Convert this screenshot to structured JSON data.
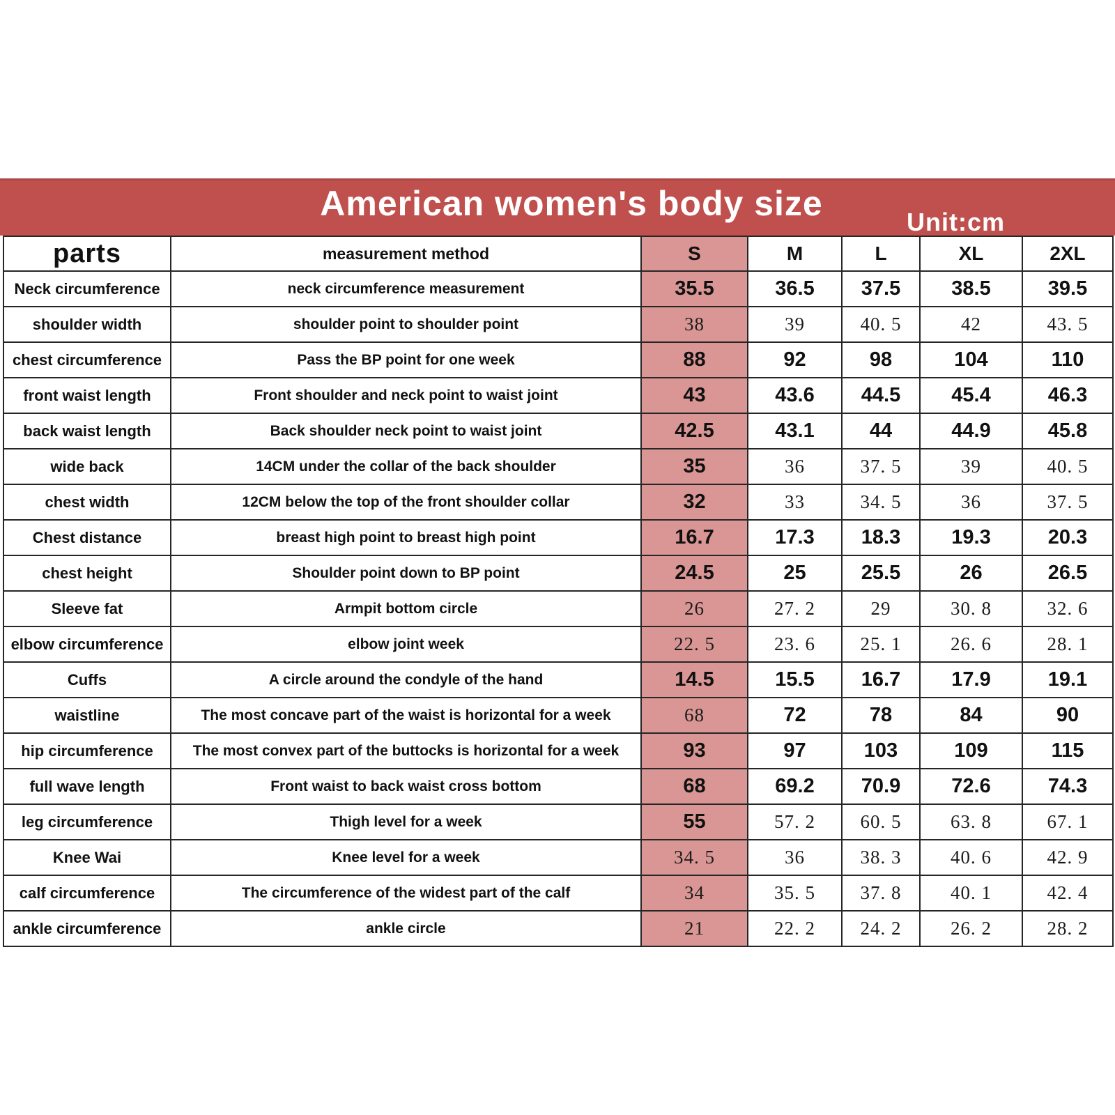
{
  "title": "American women's body size",
  "unit_label": "Unit:cm",
  "colors": {
    "banner_red": "#c0504d",
    "highlight_pink": "#d99694",
    "grid_line": "#262626",
    "title_text": "#ffffff"
  },
  "table": {
    "headers": [
      "parts",
      "measurement method",
      "S",
      "M",
      "L",
      "XL",
      "2XL"
    ],
    "highlighted_column": "S",
    "rows": [
      {
        "part": "Neck circumference",
        "method": "neck circumference measurement",
        "values": [
          "35.5",
          "36.5",
          "37.5",
          "38.5",
          "39.5"
        ],
        "styles": [
          "b",
          "b",
          "b",
          "b",
          "b"
        ]
      },
      {
        "part": "shoulder width",
        "method": "shoulder point to shoulder point",
        "values": [
          "38",
          "39",
          "40. 5",
          "42",
          "43. 5"
        ],
        "styles": [
          "s",
          "s",
          "s",
          "s",
          "s"
        ]
      },
      {
        "part": "chest circumference",
        "method": "Pass the BP point for one week",
        "values": [
          "88",
          "92",
          "98",
          "104",
          "110"
        ],
        "styles": [
          "b",
          "b",
          "b",
          "b",
          "b"
        ]
      },
      {
        "part": "front waist length",
        "method": "Front shoulder and neck point to waist joint",
        "values": [
          "43",
          "43.6",
          "44.5",
          "45.4",
          "46.3"
        ],
        "styles": [
          "b",
          "b",
          "b",
          "b",
          "b"
        ]
      },
      {
        "part": "back waist length",
        "method": "Back shoulder neck point to waist joint",
        "values": [
          "42.5",
          "43.1",
          "44",
          "44.9",
          "45.8"
        ],
        "styles": [
          "b",
          "b",
          "b",
          "b",
          "b"
        ]
      },
      {
        "part": "wide back",
        "method": "14CM under the collar of the back shoulder",
        "values": [
          "35",
          "36",
          "37. 5",
          "39",
          "40. 5"
        ],
        "styles": [
          "b",
          "s",
          "s",
          "s",
          "s"
        ]
      },
      {
        "part": "chest width",
        "method": "12CM below the top of the front shoulder collar",
        "values": [
          "32",
          "33",
          "34. 5",
          "36",
          "37. 5"
        ],
        "styles": [
          "b",
          "s",
          "s",
          "s",
          "s"
        ]
      },
      {
        "part": "Chest distance",
        "method": "breast high point to breast high point",
        "values": [
          "16.7",
          "17.3",
          "18.3",
          "19.3",
          "20.3"
        ],
        "styles": [
          "b",
          "b",
          "b",
          "b",
          "b"
        ]
      },
      {
        "part": "chest height",
        "method": "Shoulder point down to BP point",
        "values": [
          "24.5",
          "25",
          "25.5",
          "26",
          "26.5"
        ],
        "styles": [
          "b",
          "b",
          "b",
          "b",
          "b"
        ]
      },
      {
        "part": "Sleeve fat",
        "method": "Armpit bottom circle",
        "values": [
          "26",
          "27. 2",
          "29",
          "30. 8",
          "32. 6"
        ],
        "styles": [
          "s",
          "s",
          "s",
          "s",
          "s"
        ]
      },
      {
        "part": "elbow circumference",
        "method": "elbow joint week",
        "values": [
          "22. 5",
          "23. 6",
          "25. 1",
          "26. 6",
          "28. 1"
        ],
        "styles": [
          "s",
          "s",
          "s",
          "s",
          "s"
        ]
      },
      {
        "part": "Cuffs",
        "method": "A circle around the condyle of the hand",
        "values": [
          "14.5",
          "15.5",
          "16.7",
          "17.9",
          "19.1"
        ],
        "styles": [
          "b",
          "b",
          "b",
          "b",
          "b"
        ]
      },
      {
        "part": "waistline",
        "method": "The most concave part of the waist is horizontal for a week",
        "values": [
          "68",
          "72",
          "78",
          "84",
          "90"
        ],
        "styles": [
          "s",
          "b",
          "b",
          "b",
          "b"
        ]
      },
      {
        "part": "hip circumference",
        "method": "The most convex part of the buttocks is horizontal for a week",
        "values": [
          "93",
          "97",
          "103",
          "109",
          "115"
        ],
        "styles": [
          "b",
          "b",
          "b",
          "b",
          "b"
        ]
      },
      {
        "part": "full wave length",
        "method": "Front waist to back waist cross bottom",
        "values": [
          "68",
          "69.2",
          "70.9",
          "72.6",
          "74.3"
        ],
        "styles": [
          "b",
          "b",
          "b",
          "b",
          "b"
        ]
      },
      {
        "part": "leg circumference",
        "method": "Thigh level for a week",
        "values": [
          "55",
          "57. 2",
          "60. 5",
          "63. 8",
          "67. 1"
        ],
        "styles": [
          "b",
          "s",
          "s",
          "s",
          "s"
        ]
      },
      {
        "part": "Knee Wai",
        "method": "Knee level for a week",
        "values": [
          "34. 5",
          "36",
          "38. 3",
          "40. 6",
          "42. 9"
        ],
        "styles": [
          "s",
          "s",
          "s",
          "s",
          "s"
        ]
      },
      {
        "part": "calf circumference",
        "method": "The circumference of the widest part of the calf",
        "values": [
          "34",
          "35. 5",
          "37. 8",
          "40. 1",
          "42. 4"
        ],
        "styles": [
          "s",
          "s",
          "s",
          "s",
          "s"
        ]
      },
      {
        "part": "ankle circumference",
        "method": "ankle circle",
        "values": [
          "21",
          "22. 2",
          "24. 2",
          "26. 2",
          "28. 2"
        ],
        "styles": [
          "s",
          "s",
          "s",
          "s",
          "s"
        ]
      }
    ]
  }
}
